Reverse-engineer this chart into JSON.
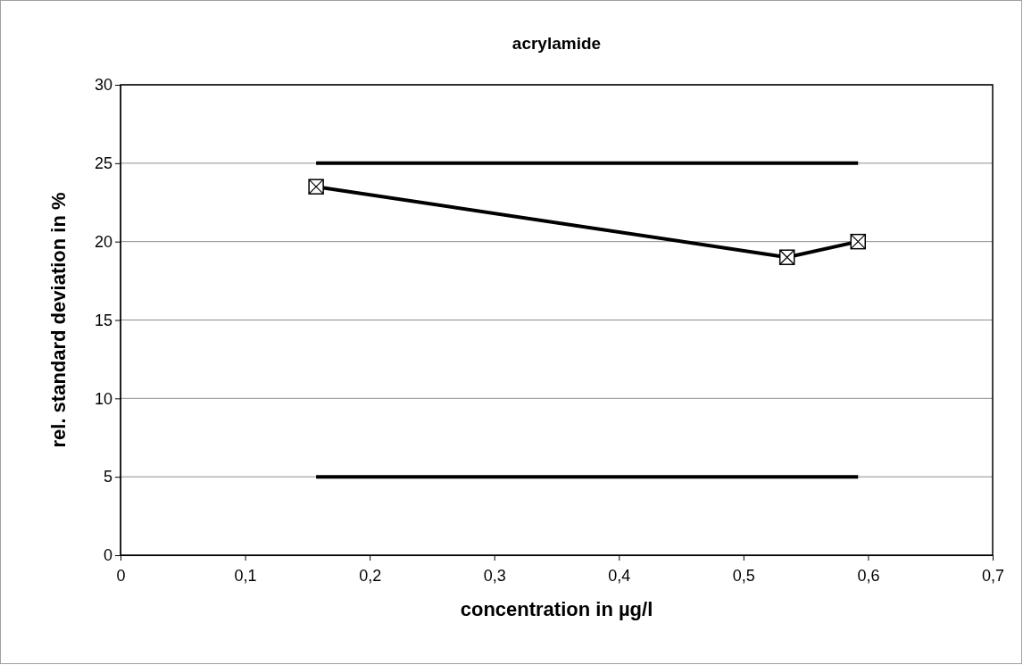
{
  "chart_data": {
    "type": "line",
    "title": "acrylamide",
    "xlabel": "concentration in µg/l",
    "ylabel": "rel. standard deviation in %",
    "xlim": [
      0,
      0.7
    ],
    "xticks": [
      0,
      {
        "value": 0.1,
        "label": "0,1"
      },
      {
        "value": 0.2,
        "label": "0,2"
      },
      {
        "value": 0.3,
        "label": "0,3"
      },
      {
        "value": 0.4,
        "label": "0,4"
      },
      {
        "value": 0.5,
        "label": "0,5"
      },
      {
        "value": 0.6,
        "label": "0,6"
      },
      {
        "value": 0.7,
        "label": "0,7"
      }
    ],
    "ylim": [
      0,
      30
    ],
    "yticks": [
      0,
      5,
      10,
      15,
      20,
      25,
      30
    ],
    "grid": "y",
    "line_style": "solid",
    "series": [
      {
        "color": "#000000",
        "x": [
          0.157,
          0.535,
          0.592
        ],
        "values": [
          23.5,
          19.0,
          20.0
        ],
        "marker": "square"
      },
      {
        "color": "#000000",
        "x": [
          0.157,
          0.592
        ],
        "values": [
          25,
          25
        ],
        "marker": "none"
      },
      {
        "color": "#000000",
        "x": [
          0.157,
          0.592
        ],
        "values": [
          5,
          5
        ],
        "marker": "none"
      }
    ]
  }
}
